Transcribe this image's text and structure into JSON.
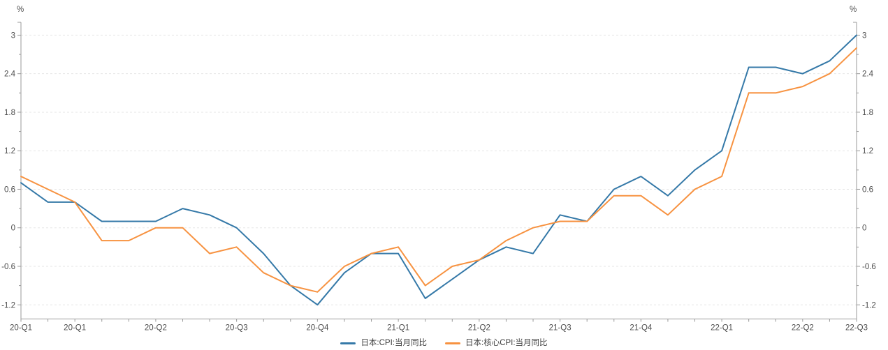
{
  "axes": {
    "y_unit_left": "%",
    "y_unit_right": "%",
    "y_tick_labels": [
      "3",
      "2.4",
      "1.8",
      "1.2",
      "0.6",
      "0",
      "-0.6",
      "-1.2"
    ],
    "y_tick_values": [
      3,
      2.4,
      1.8,
      1.2,
      0.6,
      0,
      -0.6,
      -1.2
    ],
    "y_minor_tick_values": [
      2.7,
      2.1,
      1.5,
      0.9,
      0.3,
      -0.3,
      -0.9
    ],
    "x_tick_labels": [
      "20-Q1",
      "20-Q1",
      "20-Q2",
      "20-Q3",
      "20-Q4",
      "21-Q1",
      "21-Q2",
      "21-Q3",
      "21-Q4",
      "22-Q1",
      "22-Q2",
      "22-Q3"
    ],
    "x_label_point_indices": [
      0,
      2,
      5,
      8,
      11,
      14,
      17,
      20,
      23,
      26,
      29,
      31
    ]
  },
  "legend": {
    "items": [
      {
        "label": "日本:CPI:当月同比",
        "color": "#3579A8"
      },
      {
        "label": "日本:核心CPI:当月同比",
        "color": "#F79240"
      }
    ]
  },
  "chart_data": {
    "type": "line",
    "title": "",
    "xlabel": "",
    "ylabel_left": "%",
    "ylabel_right": "%",
    "ylim": [
      -1.42,
      3.2
    ],
    "grid": "horizontal-dashed",
    "legend_position": "bottom-center",
    "x": [
      "2020-01",
      "2020-02",
      "2020-03",
      "2020-04",
      "2020-05",
      "2020-06",
      "2020-07",
      "2020-08",
      "2020-09",
      "2020-10",
      "2020-11",
      "2020-12",
      "2021-01",
      "2021-02",
      "2021-03",
      "2021-04",
      "2021-05",
      "2021-06",
      "2021-07",
      "2021-08",
      "2021-09",
      "2021-10",
      "2021-11",
      "2021-12",
      "2022-01",
      "2022-02",
      "2022-03",
      "2022-04",
      "2022-05",
      "2022-06",
      "2022-07",
      "2022-08"
    ],
    "series": [
      {
        "name": "日本:CPI:当月同比",
        "color": "#3579A8",
        "values": [
          0.7,
          0.4,
          0.4,
          0.1,
          0.1,
          0.1,
          0.3,
          0.2,
          0.0,
          -0.4,
          -0.9,
          -1.2,
          -0.7,
          -0.4,
          -0.4,
          -1.1,
          -0.8,
          -0.5,
          -0.3,
          -0.4,
          0.2,
          0.1,
          0.6,
          0.8,
          0.5,
          0.9,
          1.2,
          2.5,
          2.5,
          2.4,
          2.6,
          3.0
        ]
      },
      {
        "name": "日本:核心CPI:当月同比",
        "color": "#F79240",
        "values": [
          0.8,
          0.6,
          0.4,
          -0.2,
          -0.2,
          0.0,
          0.0,
          -0.4,
          -0.3,
          -0.7,
          -0.9,
          -1.0,
          -0.6,
          -0.4,
          -0.3,
          -0.9,
          -0.6,
          -0.5,
          -0.2,
          0.0,
          0.1,
          0.1,
          0.5,
          0.5,
          0.2,
          0.6,
          0.8,
          2.1,
          2.1,
          2.2,
          2.4,
          2.8
        ]
      }
    ]
  },
  "style": {
    "axis_color": "#9a9a9a",
    "grid_color": "#e6e6e6",
    "text_color": "#4d4d4d"
  }
}
